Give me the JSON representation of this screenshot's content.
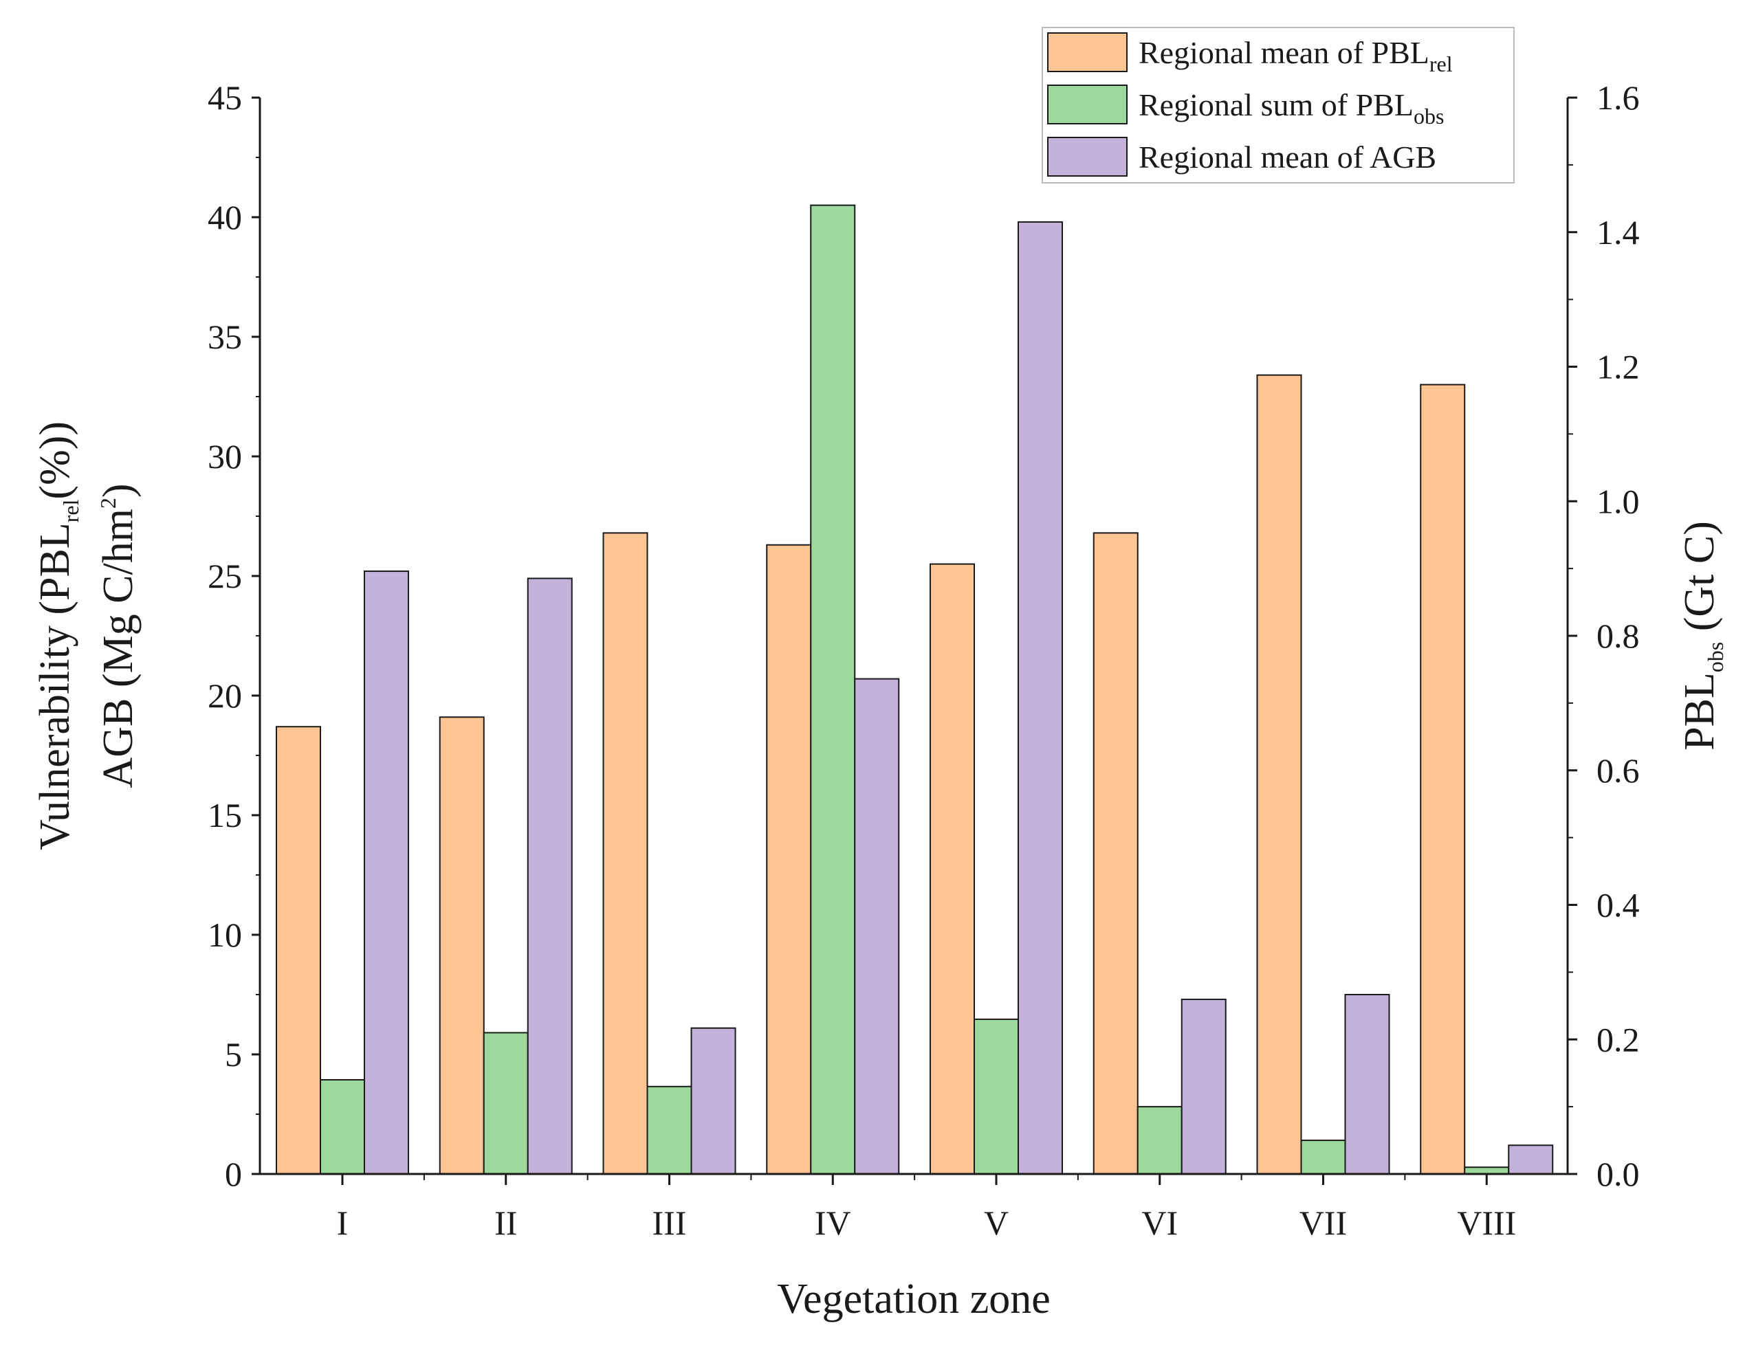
{
  "chart_data": {
    "type": "bar",
    "xlabel": "Vegetation zone",
    "ylabel_left": {
      "line1": {
        "pre": "Vulnerability (PBL",
        "sub": "rel",
        "post": "(%))"
      },
      "line2": {
        "pre": "AGB (Mg C/hm",
        "sup": "2",
        "post": ")"
      }
    },
    "ylabel_right": {
      "pre": "PBL",
      "sub": "obs",
      "post": " (Gt C)"
    },
    "categories": [
      "I",
      "II",
      "III",
      "IV",
      "V",
      "VI",
      "VII",
      "VIII"
    ],
    "ylim_left": [
      0,
      45
    ],
    "yticks_left": [
      "0",
      "5",
      "10",
      "15",
      "20",
      "25",
      "30",
      "35",
      "40",
      "45"
    ],
    "ylim_right": [
      0,
      1.6
    ],
    "yticks_right": [
      "0.0",
      "0.2",
      "0.4",
      "0.6",
      "0.8",
      "1.0",
      "1.2",
      "1.4",
      "1.6"
    ],
    "series": [
      {
        "name": "Regional mean of PBL_rel",
        "axis": "left",
        "color": "#FDC593",
        "legend": {
          "pre": "Regional mean of PBL",
          "sub": "rel"
        },
        "values": [
          18.7,
          19.1,
          26.8,
          26.3,
          25.5,
          26.8,
          33.4,
          33.0
        ]
      },
      {
        "name": "Regional sum of PBL_obs",
        "axis": "right",
        "color": "#9DD99C",
        "legend": {
          "pre": "Regional sum of PBL",
          "sub": "obs"
        },
        "values": [
          0.14,
          0.21,
          0.13,
          1.44,
          0.23,
          0.1,
          0.05,
          0.01
        ]
      },
      {
        "name": "Regional mean of AGB",
        "axis": "left",
        "color": "#C3B2D9",
        "legend": {
          "pre": "Regional mean of  AGB",
          "sub": ""
        },
        "values": [
          25.2,
          24.9,
          6.1,
          20.7,
          39.8,
          7.3,
          7.5,
          1.2
        ]
      }
    ],
    "legend_position": "top-right"
  }
}
